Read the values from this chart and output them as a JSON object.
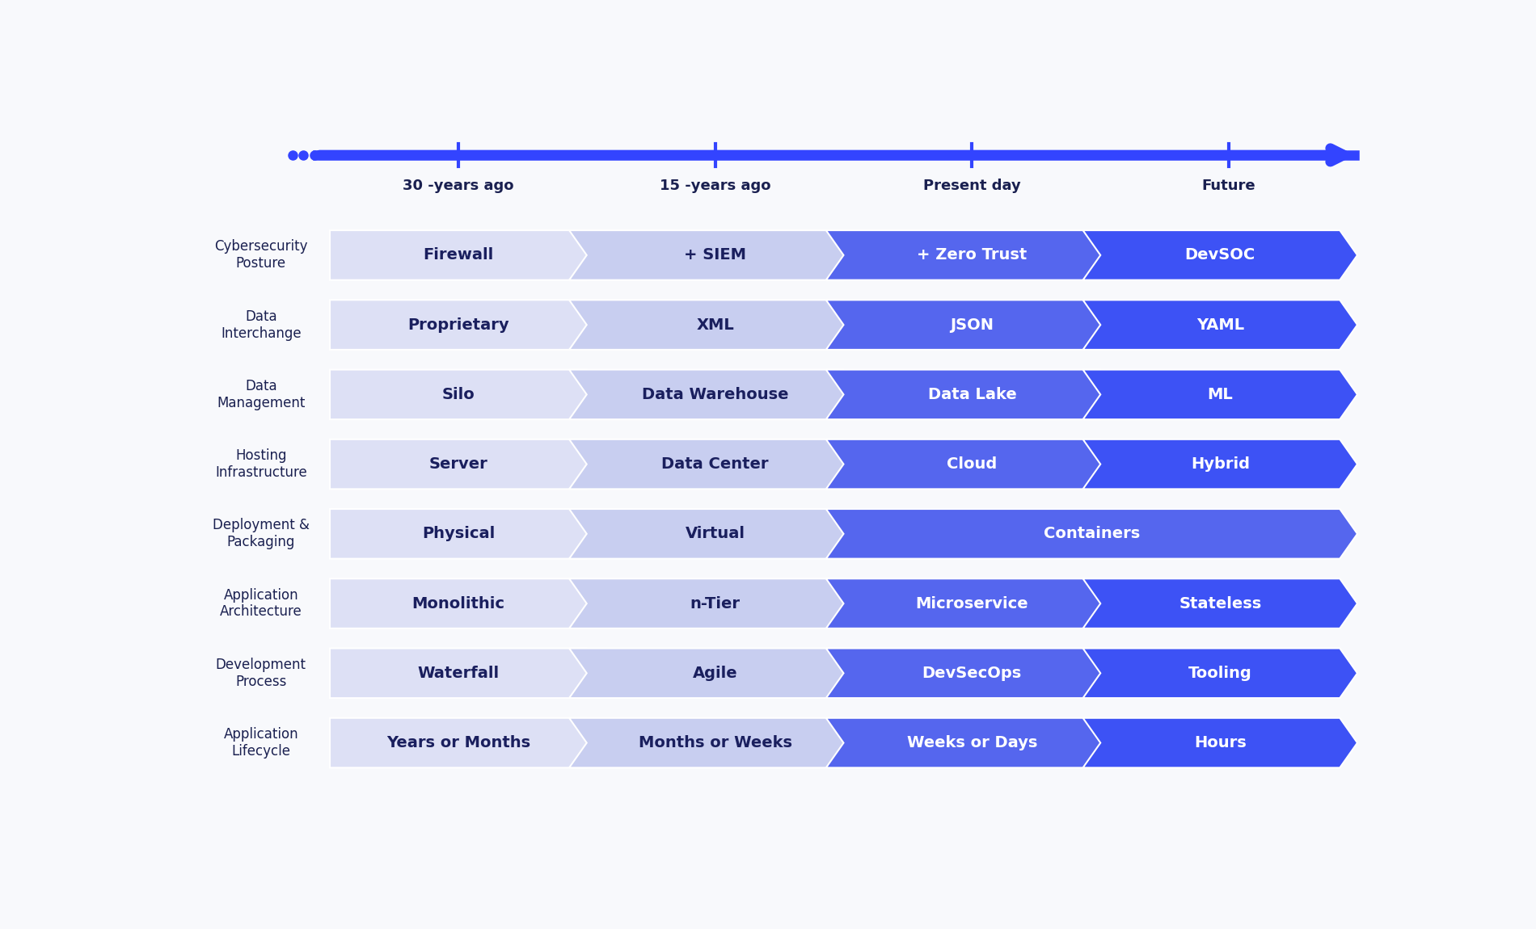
{
  "background_color": "#f8f9fc",
  "rows": [
    {
      "label": "Application\nLifecycle",
      "segments": [
        "Years or Months",
        "Months or Weeks",
        "Weeks or Days",
        "Hours"
      ],
      "span": [
        1,
        1,
        1,
        1
      ]
    },
    {
      "label": "Development\nProcess",
      "segments": [
        "Waterfall",
        "Agile",
        "DevSecOps",
        "Tooling"
      ],
      "span": [
        1,
        1,
        1,
        1
      ]
    },
    {
      "label": "Application\nArchitecture",
      "segments": [
        "Monolithic",
        "n-Tier",
        "Microservice",
        "Stateless"
      ],
      "span": [
        1,
        1,
        1,
        1
      ]
    },
    {
      "label": "Deployment &\nPackaging",
      "segments": [
        "Physical",
        "Virtual",
        "Containers",
        null
      ],
      "span": [
        1,
        1,
        2,
        0
      ]
    },
    {
      "label": "Hosting\nInfrastructure",
      "segments": [
        "Server",
        "Data Center",
        "Cloud",
        "Hybrid"
      ],
      "span": [
        1,
        1,
        1,
        1
      ]
    },
    {
      "label": "Data\nManagement",
      "segments": [
        "Silo",
        "Data Warehouse",
        "Data Lake",
        "ML"
      ],
      "span": [
        1,
        1,
        1,
        1
      ]
    },
    {
      "label": "Data\nInterchange",
      "segments": [
        "Proprietary",
        "XML",
        "JSON",
        "YAML"
      ],
      "span": [
        1,
        1,
        1,
        1
      ]
    },
    {
      "label": "Cybersecurity\nPosture",
      "segments": [
        "Firewall",
        "+ SIEM",
        "+ Zero Trust",
        "DevSOC"
      ],
      "span": [
        1,
        1,
        1,
        1
      ]
    }
  ],
  "seg_colors": [
    "#dde0f5",
    "#c8cef0",
    "#5566ee",
    "#3d52f5"
  ],
  "seg_text_colors": [
    "#1a1f5e",
    "#1a1f5e",
    "#ffffff",
    "#ffffff"
  ],
  "timeline_labels": [
    "30 -years ago",
    "15 -years ago",
    "Present day",
    "Future"
  ],
  "timeline_color": "#3344ff",
  "label_color": "#1a2050",
  "label_fontsize": 12,
  "segment_fontsize": 14,
  "timeline_fontsize": 13
}
